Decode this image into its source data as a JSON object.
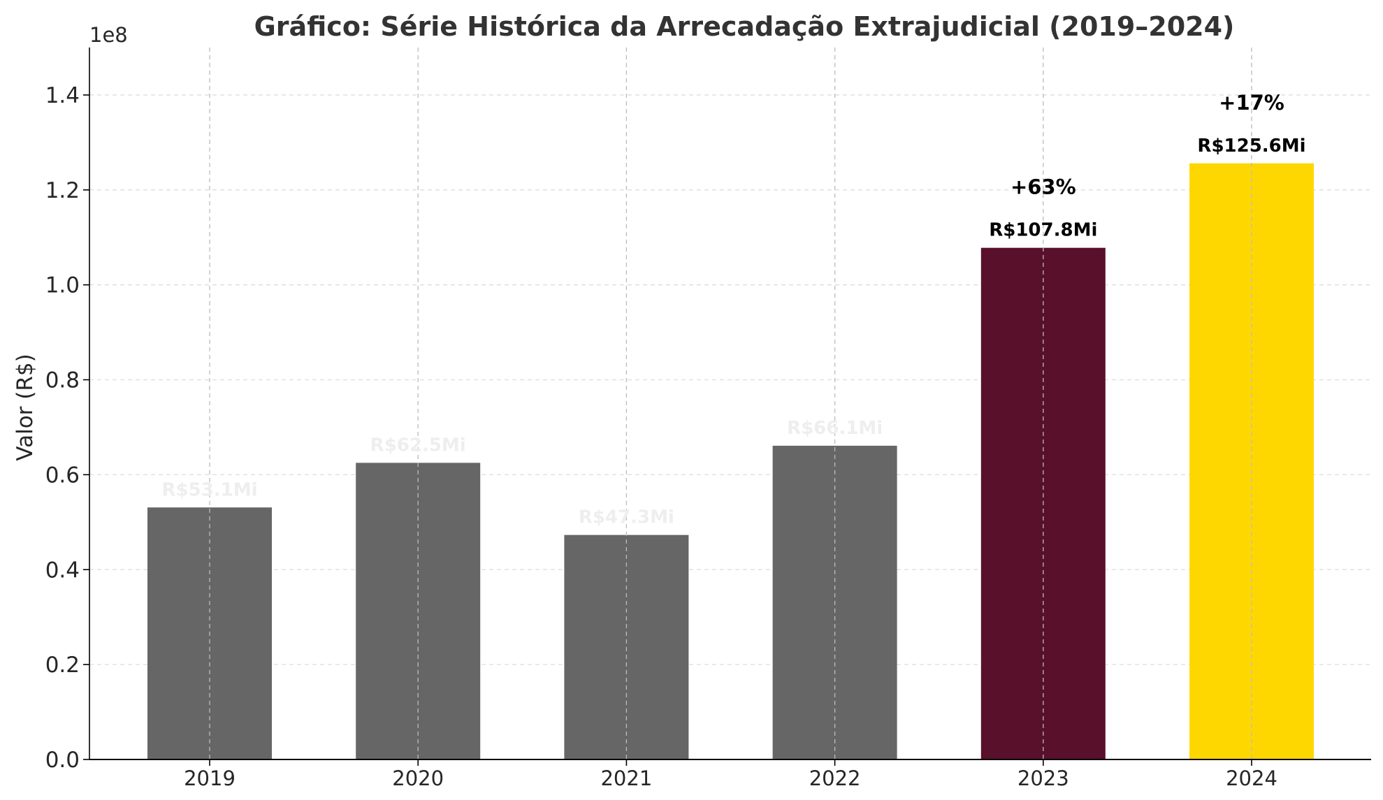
{
  "chart_data": {
    "type": "bar",
    "title": "Gráfico: Série Histórica da Arrecadação Extrajudicial (2019–2024)",
    "ylabel": "Valor (R$)",
    "xlabel": "",
    "y_offset_label": "1e8",
    "y_scale_factor": 100000000,
    "ylim": [
      0,
      1.5
    ],
    "yticks": [
      0.0,
      0.2,
      0.4,
      0.6,
      0.8,
      1.0,
      1.2,
      1.4
    ],
    "ytick_labels": [
      "0.0",
      "0.2",
      "0.4",
      "0.6",
      "0.8",
      "1.0",
      "1.2",
      "1.4"
    ],
    "categories": [
      "2019",
      "2020",
      "2021",
      "2022",
      "2023",
      "2024"
    ],
    "values": [
      53100000,
      62500000,
      47300000,
      66100000,
      107800000,
      125600000
    ],
    "value_labels": [
      "R$53.1Mi",
      "R$62.5Mi",
      "R$47.3Mi",
      "R$66.1Mi",
      "R$107.8Mi",
      "R$125.6Mi"
    ],
    "growth_labels": [
      "",
      "",
      "",
      "",
      "+63%",
      "+17%"
    ],
    "bar_colors": [
      "#666666",
      "#666666",
      "#666666",
      "#666666",
      "#58102b",
      "#ffd700"
    ],
    "value_label_colors": [
      "#eeeeee",
      "#eeeeee",
      "#eeeeee",
      "#eeeeee",
      "#000000",
      "#000000"
    ],
    "grid": true,
    "grid_color": "#dddddd"
  }
}
